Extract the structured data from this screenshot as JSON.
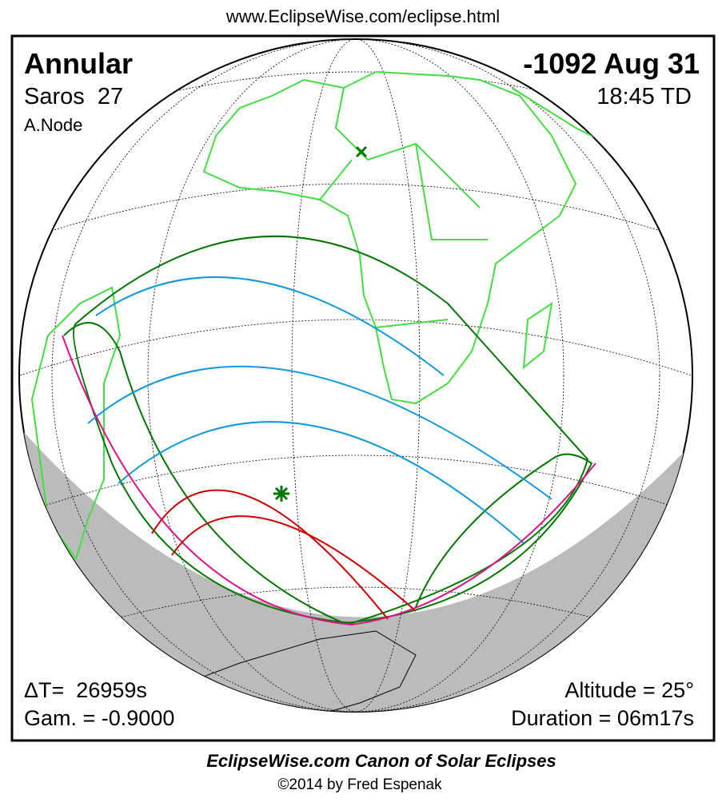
{
  "header": {
    "url": "www.EclipseWise.com/eclipse.html"
  },
  "panel": {
    "type": "Annular",
    "saros": "Saros  27",
    "node": "A.Node",
    "date": "-1092 Aug 31",
    "time": "18:45 TD",
    "delta_t": "ΔT=  26959s",
    "gamma": "Gam. = -0.9000",
    "altitude": "Altitude = 25°",
    "duration": "Duration = 06m17s"
  },
  "footer": {
    "title": "EclipseWise.com Canon of Solar Eclipses",
    "copyright": "©2014 by Fred Espenak"
  }
}
